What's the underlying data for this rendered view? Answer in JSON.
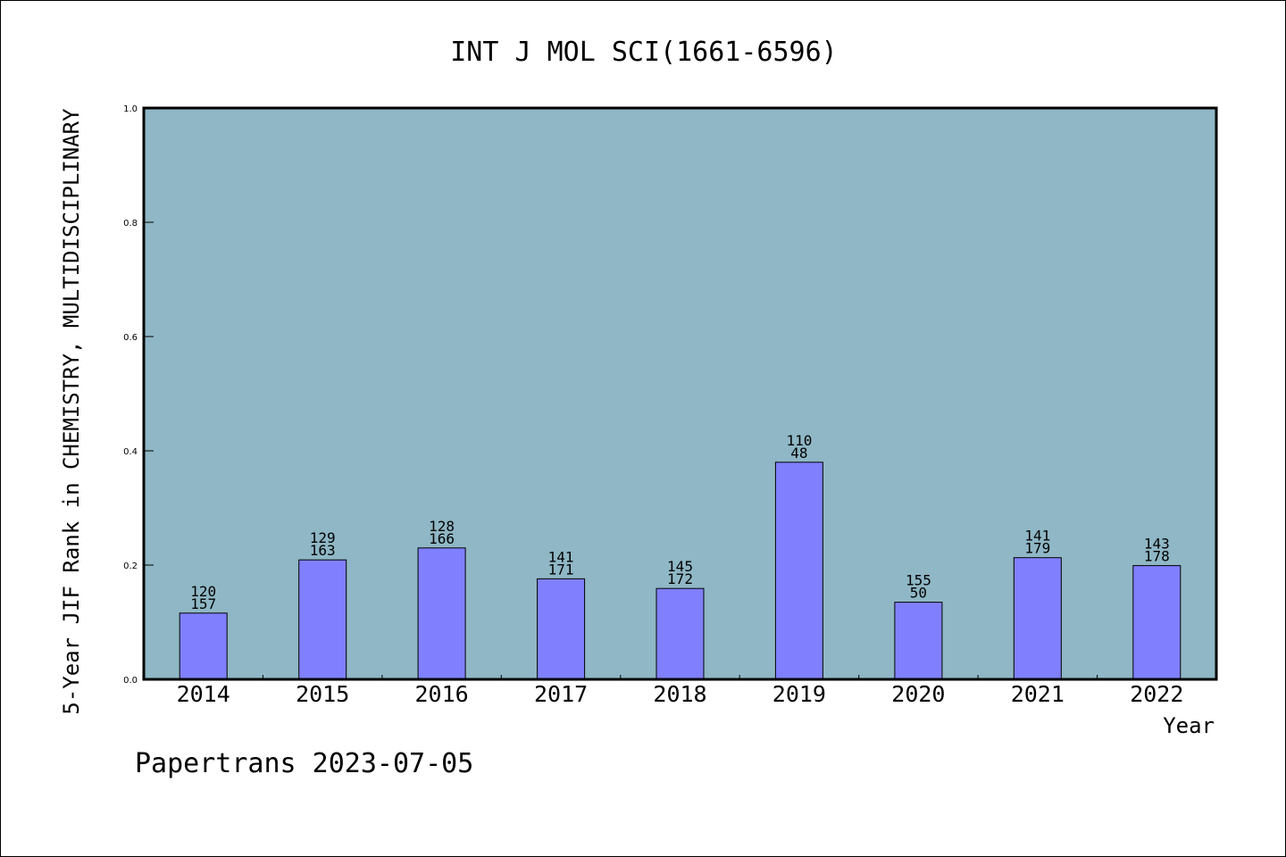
{
  "chart_data": {
    "type": "bar",
    "title": "INT J MOL SCI(1661-6596)",
    "xlabel": "Year",
    "ylabel": "5-Year JIF Rank in CHEMISTRY, MULTIDISCIPLINARY",
    "ylim": [
      0,
      1.0
    ],
    "yticks": [
      "0.0",
      "0.2",
      "0.4",
      "0.6",
      "0.8",
      "1.0"
    ],
    "categories": [
      "2014",
      "2015",
      "2016",
      "2017",
      "2018",
      "2019",
      "2020",
      "2021",
      "2022"
    ],
    "values": [
      0.116,
      0.209,
      0.23,
      0.176,
      0.159,
      0.38,
      0.135,
      0.213,
      0.199
    ],
    "label_top": [
      "120",
      "129",
      "128",
      "141",
      "145",
      "110",
      "155",
      "141",
      "143"
    ],
    "label_bottom": [
      "157",
      "163",
      "166",
      "171",
      "172",
      "48",
      "50",
      "179",
      "178"
    ],
    "grid": false,
    "legend": "none",
    "colors": {
      "plot_background": "#8fb7c5",
      "bar_fill": "#8080ff",
      "bar_stroke": "#000000"
    }
  },
  "footer": {
    "text": "Papertrans 2023-07-05"
  }
}
